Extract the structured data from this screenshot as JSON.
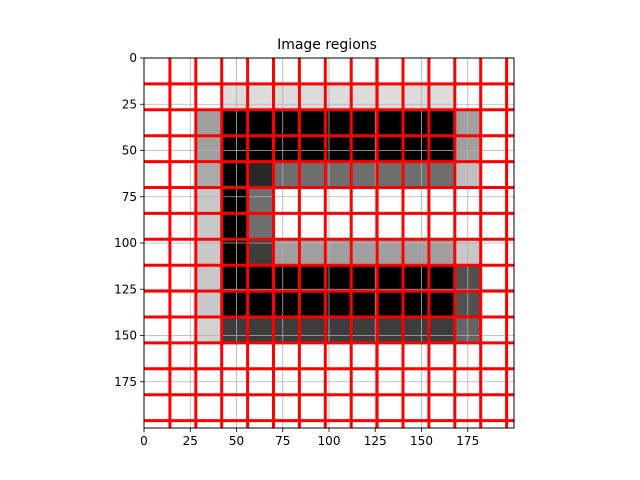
{
  "chart_data": {
    "type": "heatmap",
    "title": "Image regions",
    "xlabel": "",
    "ylabel": "",
    "xlim": [
      0,
      200
    ],
    "ylim": [
      200,
      0
    ],
    "x_ticks": [
      0,
      25,
      50,
      75,
      100,
      125,
      150,
      175
    ],
    "y_ticks": [
      0,
      25,
      50,
      75,
      100,
      125,
      150,
      175
    ],
    "grid": true,
    "cell_size": 14,
    "pixel_grid_rows": [
      [
        255,
        255,
        255,
        255,
        255,
        255,
        255,
        255,
        255,
        255,
        255,
        255,
        255,
        255,
        255
      ],
      [
        255,
        255,
        255,
        220,
        220,
        220,
        220,
        220,
        220,
        220,
        220,
        220,
        255,
        255,
        255
      ],
      [
        255,
        255,
        160,
        0,
        0,
        0,
        0,
        0,
        0,
        0,
        0,
        0,
        160,
        255,
        255
      ],
      [
        255,
        255,
        160,
        0,
        0,
        0,
        0,
        0,
        0,
        0,
        0,
        0,
        160,
        255,
        255
      ],
      [
        255,
        255,
        170,
        0,
        40,
        110,
        110,
        110,
        110,
        110,
        110,
        110,
        190,
        255,
        255
      ],
      [
        255,
        255,
        200,
        0,
        110,
        255,
        255,
        255,
        255,
        255,
        255,
        255,
        255,
        255,
        255
      ],
      [
        255,
        255,
        200,
        0,
        110,
        255,
        255,
        255,
        255,
        255,
        255,
        255,
        255,
        255,
        255
      ],
      [
        255,
        255,
        200,
        0,
        60,
        160,
        160,
        160,
        160,
        160,
        160,
        160,
        200,
        255,
        255
      ],
      [
        255,
        255,
        200,
        0,
        0,
        0,
        0,
        0,
        0,
        0,
        0,
        0,
        80,
        255,
        255
      ],
      [
        255,
        255,
        200,
        0,
        0,
        0,
        0,
        0,
        0,
        0,
        0,
        0,
        80,
        255,
        255
      ],
      [
        255,
        255,
        210,
        60,
        60,
        60,
        60,
        60,
        60,
        60,
        60,
        60,
        100,
        255,
        255
      ],
      [
        255,
        255,
        255,
        255,
        255,
        255,
        255,
        255,
        255,
        255,
        255,
        255,
        255,
        255,
        255
      ],
      [
        255,
        255,
        255,
        255,
        255,
        255,
        255,
        255,
        255,
        255,
        255,
        255,
        255,
        255,
        255
      ],
      [
        255,
        255,
        255,
        255,
        255,
        255,
        255,
        255,
        255,
        255,
        255,
        255,
        255,
        255,
        255
      ],
      [
        255,
        255,
        255,
        255,
        255,
        255,
        255,
        255,
        255,
        255,
        255,
        255,
        255,
        255,
        255
      ]
    ],
    "region_lines": [
      0,
      14,
      28,
      42,
      56,
      70,
      84,
      98,
      112,
      126,
      140,
      154,
      168,
      182,
      196
    ],
    "region_line_color": "#ff0000",
    "grid_color": "#b0b0b0"
  }
}
